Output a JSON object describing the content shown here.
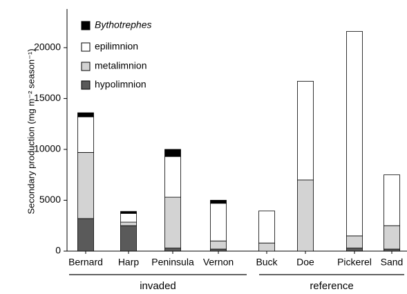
{
  "chart_data": {
    "type": "stacked_bar",
    "y_label": "Secondary production (mg m⁻² season⁻¹)",
    "categories": [
      "Bernard",
      "Harp",
      "Peninsula",
      "Vernon",
      "Buck",
      "Doe",
      "Pickerel",
      "Sand"
    ],
    "series": [
      {
        "name": "hypolimnion",
        "color": "#5a5a5a",
        "values": [
          3200,
          2500,
          300,
          200,
          0,
          0,
          300,
          200
        ]
      },
      {
        "name": "metalimnion",
        "color": "#d3d3d3",
        "values": [
          6500,
          350,
          5000,
          800,
          800,
          7000,
          1200,
          2300
        ]
      },
      {
        "name": "epilimnion",
        "color": "#ffffff",
        "values": [
          3500,
          850,
          4000,
          3700,
          3150,
          9700,
          20100,
          5000
        ]
      },
      {
        "name": "Bythotrephes",
        "color": "#000000",
        "values": [
          400,
          200,
          700,
          300,
          0,
          0,
          0,
          0
        ]
      }
    ],
    "groups": [
      "invaded",
      "reference"
    ],
    "ylim": [
      0,
      23800
    ],
    "yticks": [
      0,
      5000,
      10000,
      15000,
      20000
    ]
  }
}
